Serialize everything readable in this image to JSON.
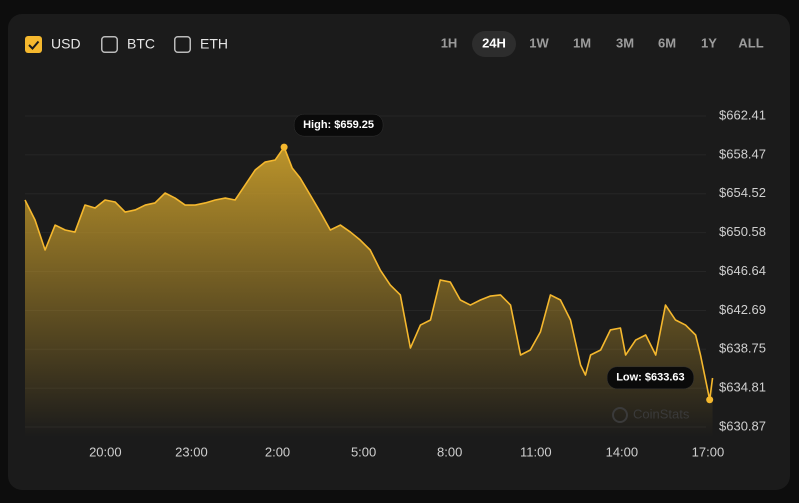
{
  "currencies": [
    {
      "label": "USD",
      "checked": true
    },
    {
      "label": "BTC",
      "checked": false
    },
    {
      "label": "ETH",
      "checked": false
    }
  ],
  "ranges": [
    "1H",
    "24H",
    "1W",
    "1M",
    "3M",
    "6M",
    "1Y",
    "ALL"
  ],
  "active_range": "24H",
  "watermark": "CoinStats",
  "chart_data": {
    "type": "area",
    "color": "#f5b82e",
    "grid": true,
    "annotations": {
      "high": "High: $659.25",
      "low": "Low: $633.63"
    },
    "x": [
      17.2,
      17.55,
      17.9,
      18.25,
      18.6,
      18.94,
      19.29,
      19.64,
      19.99,
      20.34,
      20.69,
      21.04,
      21.39,
      21.73,
      22.08,
      22.43,
      22.78,
      23.13,
      23.48,
      23.83,
      24.18,
      24.52,
      24.87,
      25.22,
      25.57,
      25.92,
      26.23,
      26.51,
      26.79,
      27.14,
      27.49,
      27.84,
      28.19,
      28.54,
      28.88,
      29.23,
      29.58,
      29.93,
      30.28,
      30.63,
      30.98,
      31.33,
      31.67,
      32.02,
      32.37,
      32.72,
      33.07,
      33.42,
      33.77,
      34.12,
      34.47,
      34.81,
      35.16,
      35.51,
      35.86,
      36.21,
      36.56,
      36.73,
      36.91,
      37.26,
      37.6,
      37.95,
      38.13,
      38.48,
      38.83,
      39.18,
      39.52,
      39.87,
      40.22,
      40.57,
      40.74,
      41.06,
      41.16
    ],
    "values": [
      653.89,
      651.86,
      648.82,
      651.35,
      650.85,
      650.64,
      653.38,
      653.08,
      653.89,
      653.69,
      652.67,
      652.88,
      653.38,
      653.59,
      654.6,
      654.09,
      653.38,
      653.38,
      653.59,
      653.89,
      654.09,
      653.89,
      655.41,
      656.93,
      657.74,
      657.95,
      659.25,
      657.14,
      656.12,
      654.4,
      652.67,
      650.85,
      651.35,
      650.64,
      649.83,
      648.82,
      646.79,
      645.27,
      644.26,
      638.88,
      641.21,
      641.72,
      645.78,
      645.57,
      643.75,
      643.24,
      643.75,
      644.15,
      644.26,
      643.24,
      638.17,
      638.68,
      640.5,
      644.26,
      643.75,
      641.72,
      637.16,
      636.14,
      638.17,
      638.68,
      640.71,
      640.91,
      638.17,
      639.69,
      640.2,
      638.17,
      643.24,
      641.72,
      641.21,
      640.2,
      638.17,
      633.63,
      635.84
    ],
    "xlim": [
      17.2,
      41.2
    ],
    "xticks": [
      {
        "value": 20,
        "label": "20:00"
      },
      {
        "value": 23,
        "label": "23:00"
      },
      {
        "value": 26,
        "label": "2:00"
      },
      {
        "value": 29,
        "label": "5:00"
      },
      {
        "value": 32,
        "label": "8:00"
      },
      {
        "value": 35,
        "label": "11:00"
      },
      {
        "value": 38,
        "label": "14:00"
      },
      {
        "value": 41,
        "label": "17:00"
      }
    ],
    "ylim": [
      630.87,
      662.41
    ],
    "yticks": [
      {
        "value": 630.87,
        "label": "$630.87"
      },
      {
        "value": 634.81,
        "label": "$634.81"
      },
      {
        "value": 638.75,
        "label": "$638.75"
      },
      {
        "value": 642.69,
        "label": "$642.69"
      },
      {
        "value": 646.64,
        "label": "$646.64"
      },
      {
        "value": 650.58,
        "label": "$650.58"
      },
      {
        "value": 654.52,
        "label": "$654.52"
      },
      {
        "value": 658.47,
        "label": "$658.47"
      },
      {
        "value": 662.41,
        "label": "$662.41"
      }
    ]
  }
}
